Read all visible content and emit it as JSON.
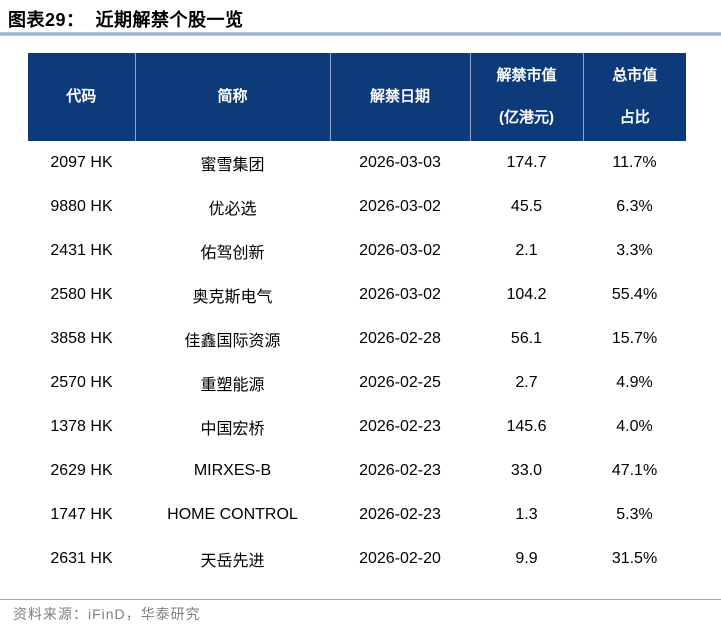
{
  "title": "图表29：  近期解禁个股一览",
  "table": {
    "columns": [
      {
        "line1": "代码",
        "line2": ""
      },
      {
        "line1": "简称",
        "line2": ""
      },
      {
        "line1": "解禁日期",
        "line2": ""
      },
      {
        "line1": "解禁市值",
        "line2": "(亿港元)"
      },
      {
        "line1": "总市值",
        "line2": "占比"
      }
    ],
    "rows": [
      {
        "code": "2097 HK",
        "name": "蜜雪集团",
        "date": "2026-03-03",
        "value": "174.7",
        "ratio": "11.7%"
      },
      {
        "code": "9880 HK",
        "name": "优必选",
        "date": "2026-03-02",
        "value": "45.5",
        "ratio": "6.3%"
      },
      {
        "code": "2431 HK",
        "name": "佑驾创新",
        "date": "2026-03-02",
        "value": "2.1",
        "ratio": "3.3%"
      },
      {
        "code": "2580 HK",
        "name": "奥克斯电气",
        "date": "2026-03-02",
        "value": "104.2",
        "ratio": "55.4%"
      },
      {
        "code": "3858 HK",
        "name": "佳鑫国际资源",
        "date": "2026-02-28",
        "value": "56.1",
        "ratio": "15.7%"
      },
      {
        "code": "2570 HK",
        "name": "重塑能源",
        "date": "2026-02-25",
        "value": "2.7",
        "ratio": "4.9%"
      },
      {
        "code": "1378 HK",
        "name": "中国宏桥",
        "date": "2026-02-23",
        "value": "145.6",
        "ratio": "4.0%"
      },
      {
        "code": "2629 HK",
        "name": "MIRXES-B",
        "date": "2026-02-23",
        "value": "33.0",
        "ratio": "47.1%"
      },
      {
        "code": "1747 HK",
        "name": "HOME CONTROL",
        "date": "2026-02-23",
        "value": "1.3",
        "ratio": "5.3%"
      },
      {
        "code": "2631 HK",
        "name": "天岳先进",
        "date": "2026-02-20",
        "value": "9.9",
        "ratio": "31.5%"
      }
    ]
  },
  "source": "资料来源：iFinD，华泰研究",
  "colors": {
    "header_bg": "#0d3a78",
    "header_text": "#ffffff",
    "header_separator": "#8fa3c8",
    "title_rule": "#8fa9ca",
    "footer_rule": "#a6a6a6",
    "source_text": "#7f7f7f",
    "body_text": "#000000"
  }
}
